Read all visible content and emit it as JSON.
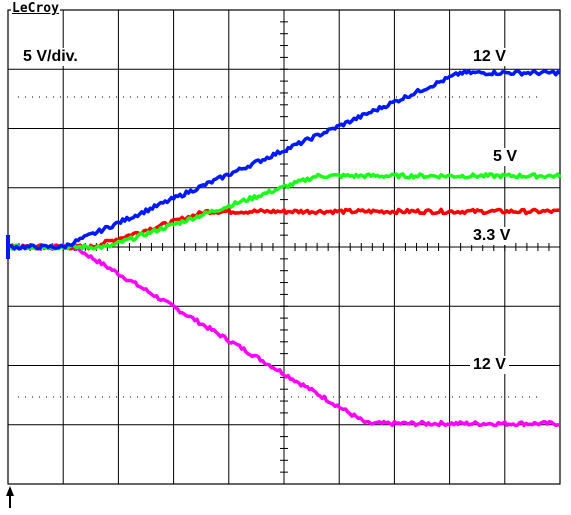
{
  "brand": "LeCroy",
  "scale_label": "5 V/div.",
  "colors": {
    "background": "#ffffff",
    "grid": "#000000",
    "blue": "#0018ff",
    "green": "#18ff18",
    "red": "#ff0000",
    "magenta": "#ff00ff"
  },
  "chart_data": {
    "type": "line",
    "title": "",
    "xlabel": "",
    "ylabel": "",
    "x_divisions": 10,
    "y_divisions": 8,
    "volts_per_div": 5,
    "grid": true,
    "xlim": [
      0,
      10
    ],
    "ylim": [
      -20,
      20
    ],
    "series": [
      {
        "name": "12 V",
        "color": "#0018ff",
        "x": [
          0,
          1,
          8.2,
          10
        ],
        "y": [
          0,
          0,
          14.7,
          14.7
        ]
      },
      {
        "name": "5 V",
        "color": "#18ff18",
        "x": [
          0,
          1.8,
          5.6,
          10
        ],
        "y": [
          0,
          0,
          6.0,
          6.0
        ]
      },
      {
        "name": "3.3 V",
        "color": "#ff0000",
        "x": [
          0,
          1.5,
          3.6,
          10
        ],
        "y": [
          0,
          0,
          3.0,
          3.0
        ]
      },
      {
        "name": "12 V",
        "color": "#ff00ff",
        "x": [
          0,
          1.2,
          6.5,
          10
        ],
        "y": [
          0,
          0,
          -14.9,
          -14.9
        ]
      }
    ],
    "annotations": [
      "12 V",
      "5 V",
      "3.3 V",
      "12 V"
    ]
  }
}
